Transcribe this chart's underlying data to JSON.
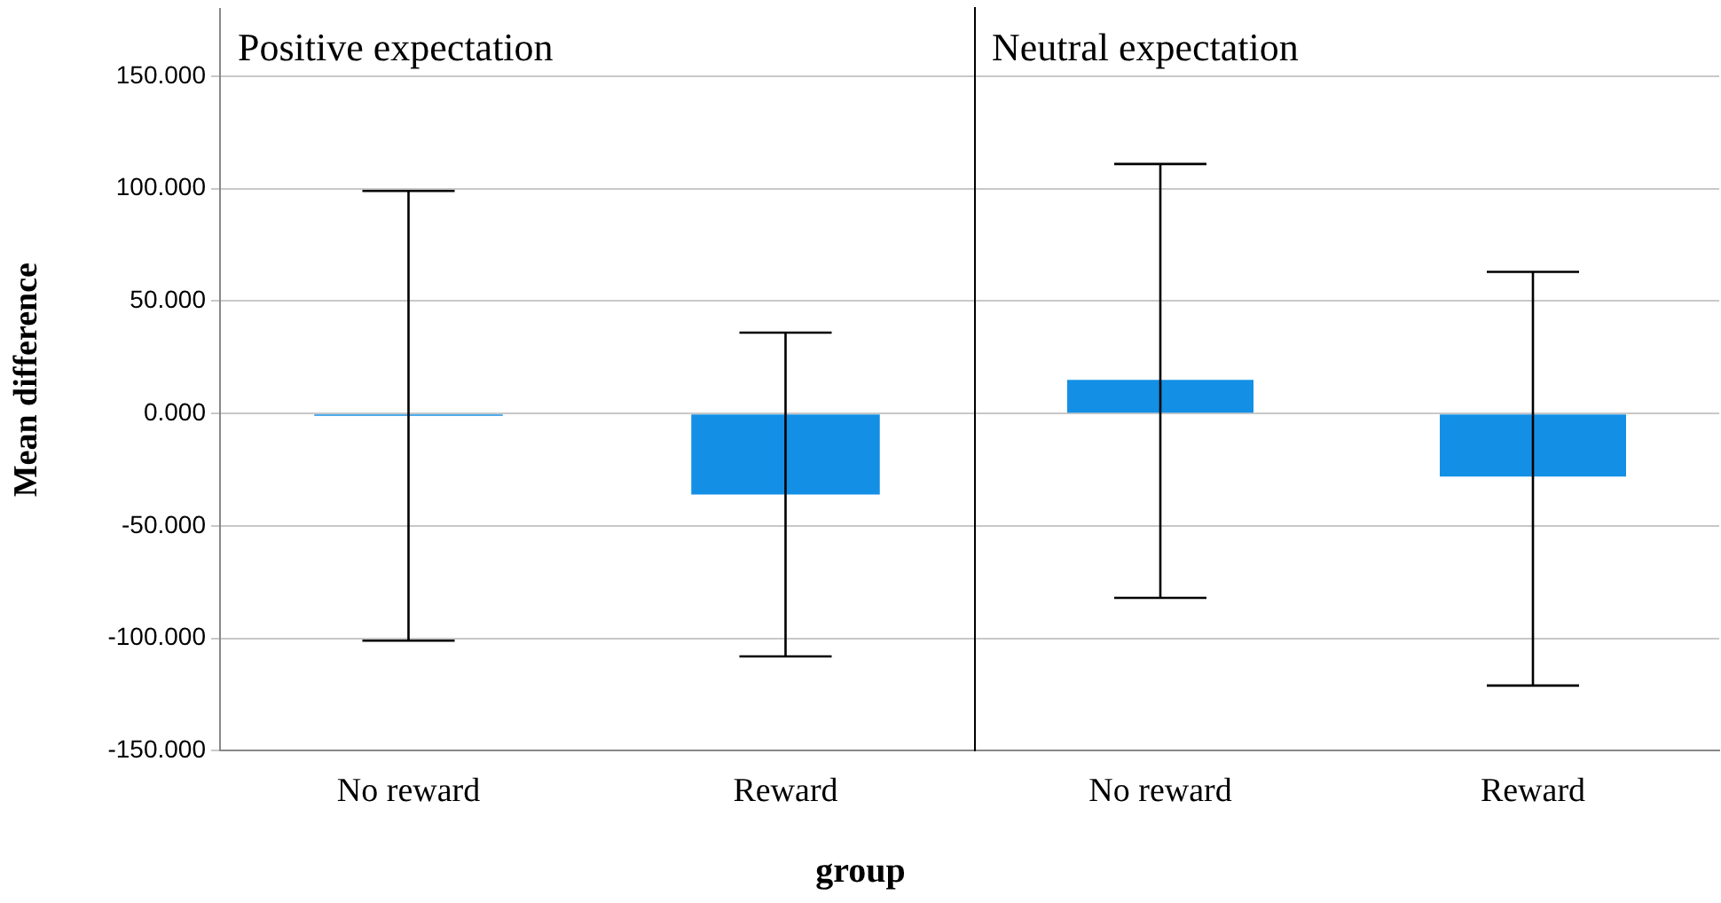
{
  "chart_data": [
    {
      "type": "bar",
      "title": "Positive expectation",
      "ylabel": "Mean difference",
      "xlabel": "group",
      "categories": [
        "No reward",
        "Reward"
      ],
      "values": [
        -1,
        -36
      ],
      "color": "#1390e6",
      "errors": [
        [
          -101,
          99
        ],
        [
          -108,
          36
        ]
      ],
      "ylim": [
        -150,
        180
      ],
      "yticks": [
        {
          "value": -150,
          "label": "-150.000"
        },
        {
          "value": -100,
          "label": "-100.000"
        },
        {
          "value": -50,
          "label": "-50.000"
        },
        {
          "value": 0,
          "label": "0.000"
        },
        {
          "value": 50,
          "label": "50.000"
        },
        {
          "value": 100,
          "label": "100.000"
        },
        {
          "value": 150,
          "label": "150.000"
        }
      ],
      "grid": "y"
    },
    {
      "type": "bar",
      "title": "Neutral expectation",
      "categories": [
        "No reward",
        "Reward"
      ],
      "values": [
        15,
        -28
      ],
      "color": "#1390e6",
      "errors": [
        [
          -82,
          111
        ],
        [
          -121,
          63
        ]
      ],
      "ylim": [
        -150,
        180
      ],
      "yticks": [
        -150,
        -100,
        -50,
        0,
        50,
        100,
        150
      ],
      "grid": "y",
      "tick_labels": "x"
    }
  ]
}
